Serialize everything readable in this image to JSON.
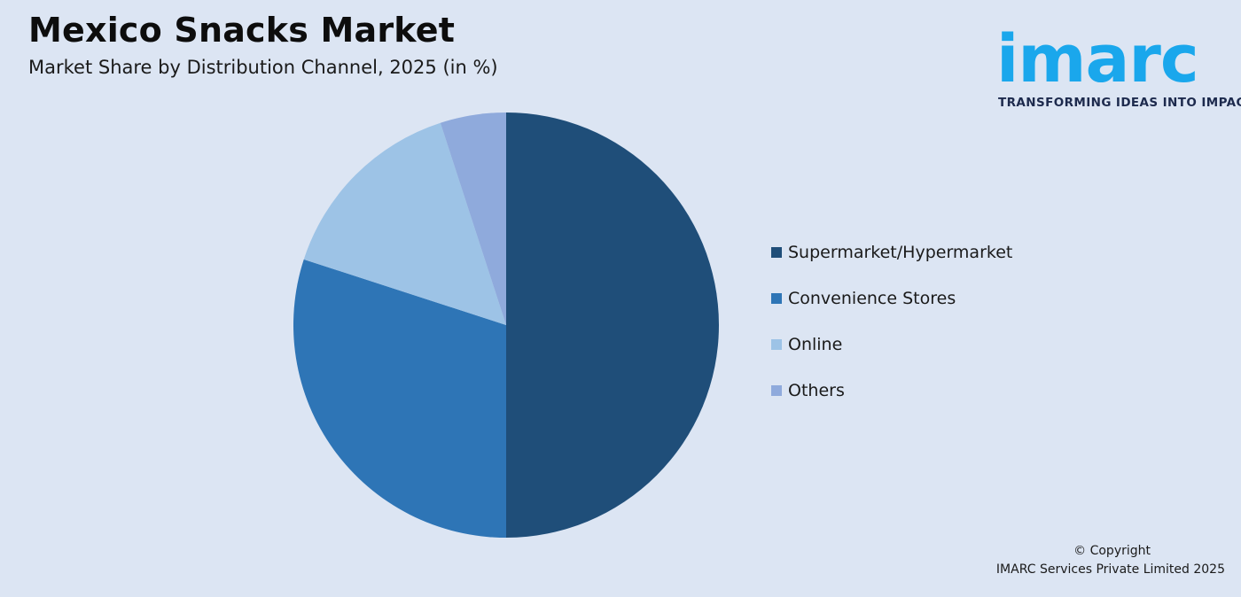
{
  "header": {
    "title": "Mexico Snacks Market",
    "subtitle": "Market Share by Distribution Channel, 2025 (in %)"
  },
  "logo": {
    "wordmark": "imarc",
    "tagline": "TRANSFORMING IDEAS INTO IMPACT",
    "color": "#1aa7ec"
  },
  "chart_data": {
    "type": "pie",
    "title": "Mexico Snacks Market",
    "subtitle": "Market Share by Distribution Channel, 2025 (in %)",
    "categories": [
      "Supermarket/Hypermarket",
      "Convenience Stores",
      "Online",
      "Others"
    ],
    "values": [
      50,
      30,
      15,
      5
    ],
    "colors": [
      "#1f4e79",
      "#2e75b6",
      "#9dc3e6",
      "#8faadc"
    ],
    "legend_position": "right"
  },
  "footer": {
    "copyright_line1": "© Copyright",
    "copyright_line2": "IMARC Services Private Limited 2025"
  }
}
